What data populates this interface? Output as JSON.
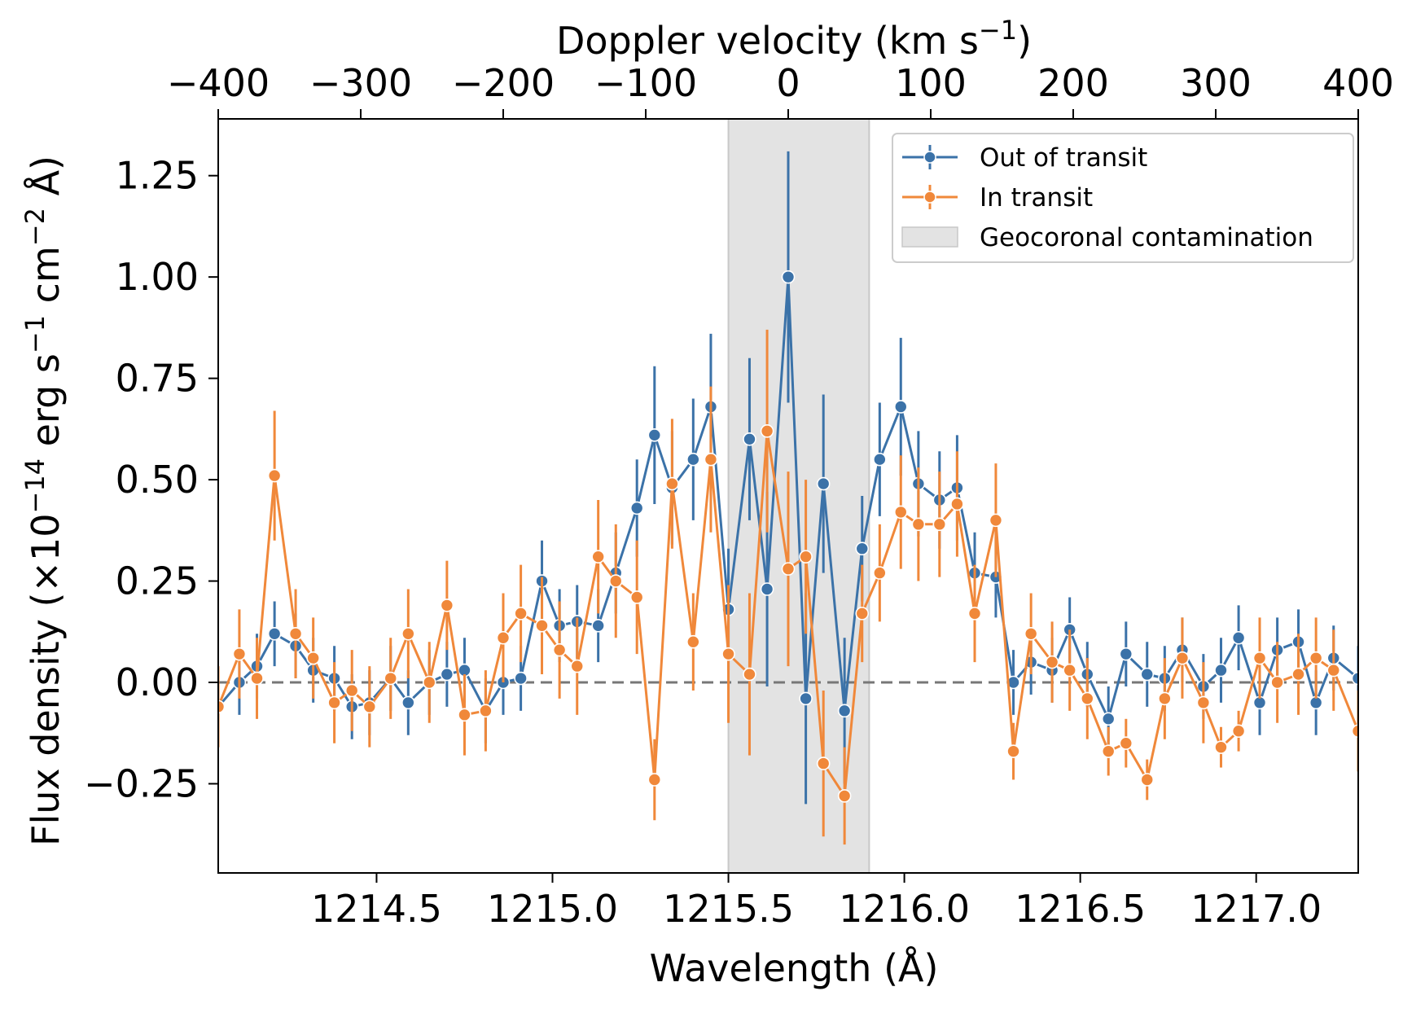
{
  "chart_data": {
    "type": "line",
    "xlabel": "Wavelength (Å)",
    "x2label": "Doppler velocity (km s",
    "x2label_sup": "−1",
    "x2label_end": ")",
    "ylabel_prefix": "Flux density (×10",
    "ylabel_exp1": "−14",
    "ylabel_mid1": " erg s",
    "ylabel_exp2": "−1",
    "ylabel_mid2": " cm",
    "ylabel_exp3": "−2",
    "ylabel_end": " Å)",
    "xlim": [
      1214.05,
      1217.29
    ],
    "ylim": [
      -0.47,
      1.39
    ],
    "x2lim": [
      -400,
      400
    ],
    "xticks": [
      1214.5,
      1215.0,
      1215.5,
      1216.0,
      1216.5,
      1217.0
    ],
    "xtick_labels": [
      "1214.5",
      "1215.0",
      "1215.5",
      "1216.0",
      "1216.5",
      "1217.0"
    ],
    "yticks": [
      -0.25,
      0.0,
      0.25,
      0.5,
      0.75,
      1.0,
      1.25
    ],
    "ytick_labels": [
      "−0.25",
      "0.00",
      "0.25",
      "0.50",
      "0.75",
      "1.00",
      "1.25"
    ],
    "x2ticks": [
      -400,
      -300,
      -200,
      -100,
      0,
      100,
      200,
      300,
      400
    ],
    "x2tick_labels": [
      "−400",
      "−300",
      "−200",
      "−100",
      "0",
      "100",
      "200",
      "300",
      "400"
    ],
    "reference_line_y": 0.0,
    "shaded_region": {
      "name": "Geocoronal contamination",
      "x": [
        1215.5,
        1215.9
      ],
      "color": "#e3e3e3"
    },
    "legend": {
      "placement": "top-right",
      "entries": [
        "Out of transit",
        "In transit",
        "Geocoronal contamination"
      ]
    },
    "series": [
      {
        "name": "Out of transit",
        "color": "#3b72a8",
        "x": [
          1214.05,
          1214.11,
          1214.16,
          1214.21,
          1214.27,
          1214.32,
          1214.38,
          1214.43,
          1214.48,
          1214.54,
          1214.59,
          1214.65,
          1214.7,
          1214.75,
          1214.81,
          1214.86,
          1214.91,
          1214.97,
          1215.02,
          1215.07,
          1215.13,
          1215.18,
          1215.24,
          1215.29,
          1215.34,
          1215.4,
          1215.45,
          1215.5,
          1215.56,
          1215.61,
          1215.67,
          1215.72,
          1215.77,
          1215.83,
          1215.88,
          1215.93,
          1215.99,
          1216.04,
          1216.1,
          1216.15,
          1216.2,
          1216.26,
          1216.31,
          1216.36,
          1216.42,
          1216.47,
          1216.52,
          1216.58,
          1216.63,
          1216.69,
          1216.74,
          1216.79,
          1216.85,
          1216.9,
          1216.95,
          1217.01,
          1217.06,
          1217.12,
          1217.17,
          1217.22,
          1217.29
        ],
        "y": [
          -0.06,
          0.0,
          0.04,
          0.12,
          0.09,
          0.03,
          0.01,
          -0.06,
          -0.05,
          0.01,
          -0.05,
          0.0,
          0.02,
          0.03,
          -0.07,
          0.0,
          0.01,
          0.25,
          0.14,
          0.15,
          0.14,
          0.27,
          0.43,
          0.61,
          0.48,
          0.55,
          0.68,
          0.18,
          0.6,
          0.23,
          1.0,
          -0.04,
          0.49,
          -0.07,
          0.33,
          0.55,
          0.68,
          0.49,
          0.45,
          0.48,
          0.27,
          0.26,
          0.0,
          0.05,
          0.03,
          0.13,
          0.02,
          -0.09,
          0.07,
          0.02,
          0.01,
          0.08,
          -0.01,
          0.03,
          0.11,
          -0.05,
          0.08,
          0.1,
          -0.05,
          0.06,
          0.01
        ],
        "err": [
          0.08,
          0.08,
          0.08,
          0.08,
          0.08,
          0.08,
          0.08,
          0.08,
          0.08,
          0.08,
          0.08,
          0.08,
          0.08,
          0.08,
          0.08,
          0.08,
          0.08,
          0.1,
          0.09,
          0.09,
          0.09,
          0.1,
          0.12,
          0.17,
          0.14,
          0.15,
          0.18,
          0.15,
          0.2,
          0.24,
          0.31,
          0.26,
          0.22,
          0.18,
          0.13,
          0.14,
          0.17,
          0.13,
          0.12,
          0.13,
          0.1,
          0.1,
          0.08,
          0.08,
          0.08,
          0.08,
          0.08,
          0.08,
          0.08,
          0.08,
          0.08,
          0.08,
          0.08,
          0.08,
          0.08,
          0.08,
          0.08,
          0.08,
          0.08,
          0.08,
          0.08
        ]
      },
      {
        "name": "In transit",
        "color": "#f0883a",
        "x": [
          1214.05,
          1214.11,
          1214.16,
          1214.21,
          1214.27,
          1214.32,
          1214.38,
          1214.43,
          1214.48,
          1214.54,
          1214.59,
          1214.65,
          1214.7,
          1214.75,
          1214.81,
          1214.86,
          1214.91,
          1214.97,
          1215.02,
          1215.07,
          1215.13,
          1215.18,
          1215.24,
          1215.29,
          1215.34,
          1215.4,
          1215.45,
          1215.5,
          1215.56,
          1215.61,
          1215.67,
          1215.72,
          1215.77,
          1215.83,
          1215.88,
          1215.93,
          1215.99,
          1216.04,
          1216.1,
          1216.15,
          1216.2,
          1216.26,
          1216.31,
          1216.36,
          1216.42,
          1216.47,
          1216.52,
          1216.58,
          1216.63,
          1216.69,
          1216.74,
          1216.79,
          1216.85,
          1216.9,
          1216.95,
          1217.01,
          1217.06,
          1217.12,
          1217.17,
          1217.22,
          1217.29
        ],
        "y": [
          -0.06,
          0.07,
          0.01,
          0.51,
          0.12,
          0.06,
          -0.05,
          -0.02,
          -0.06,
          0.01,
          0.12,
          0.0,
          0.19,
          -0.08,
          -0.07,
          0.11,
          0.17,
          0.14,
          0.08,
          0.04,
          0.31,
          0.25,
          0.21,
          -0.24,
          0.49,
          0.1,
          0.55,
          0.07,
          0.02,
          0.62,
          0.28,
          0.31,
          -0.2,
          -0.28,
          0.17,
          0.27,
          0.42,
          0.39,
          0.39,
          0.44,
          0.17,
          0.4,
          -0.17,
          0.12,
          0.05,
          0.03,
          -0.04,
          -0.17,
          -0.15,
          -0.24,
          -0.04,
          0.06,
          -0.05,
          -0.16,
          -0.12,
          0.06,
          0.0,
          0.02,
          0.06,
          0.03,
          -0.12
        ],
        "err": [
          0.1,
          0.11,
          0.1,
          0.16,
          0.11,
          0.1,
          0.1,
          0.1,
          0.1,
          0.1,
          0.11,
          0.1,
          0.11,
          0.1,
          0.1,
          0.11,
          0.12,
          0.12,
          0.12,
          0.12,
          0.14,
          0.14,
          0.14,
          0.1,
          0.16,
          0.12,
          0.18,
          0.17,
          0.2,
          0.25,
          0.24,
          0.19,
          0.18,
          0.12,
          0.12,
          0.12,
          0.14,
          0.14,
          0.13,
          0.13,
          0.12,
          0.14,
          0.07,
          0.1,
          0.1,
          0.1,
          0.1,
          0.06,
          0.06,
          0.05,
          0.1,
          0.1,
          0.1,
          0.05,
          0.05,
          0.1,
          0.1,
          0.1,
          0.1,
          0.1,
          0.1
        ]
      }
    ]
  }
}
